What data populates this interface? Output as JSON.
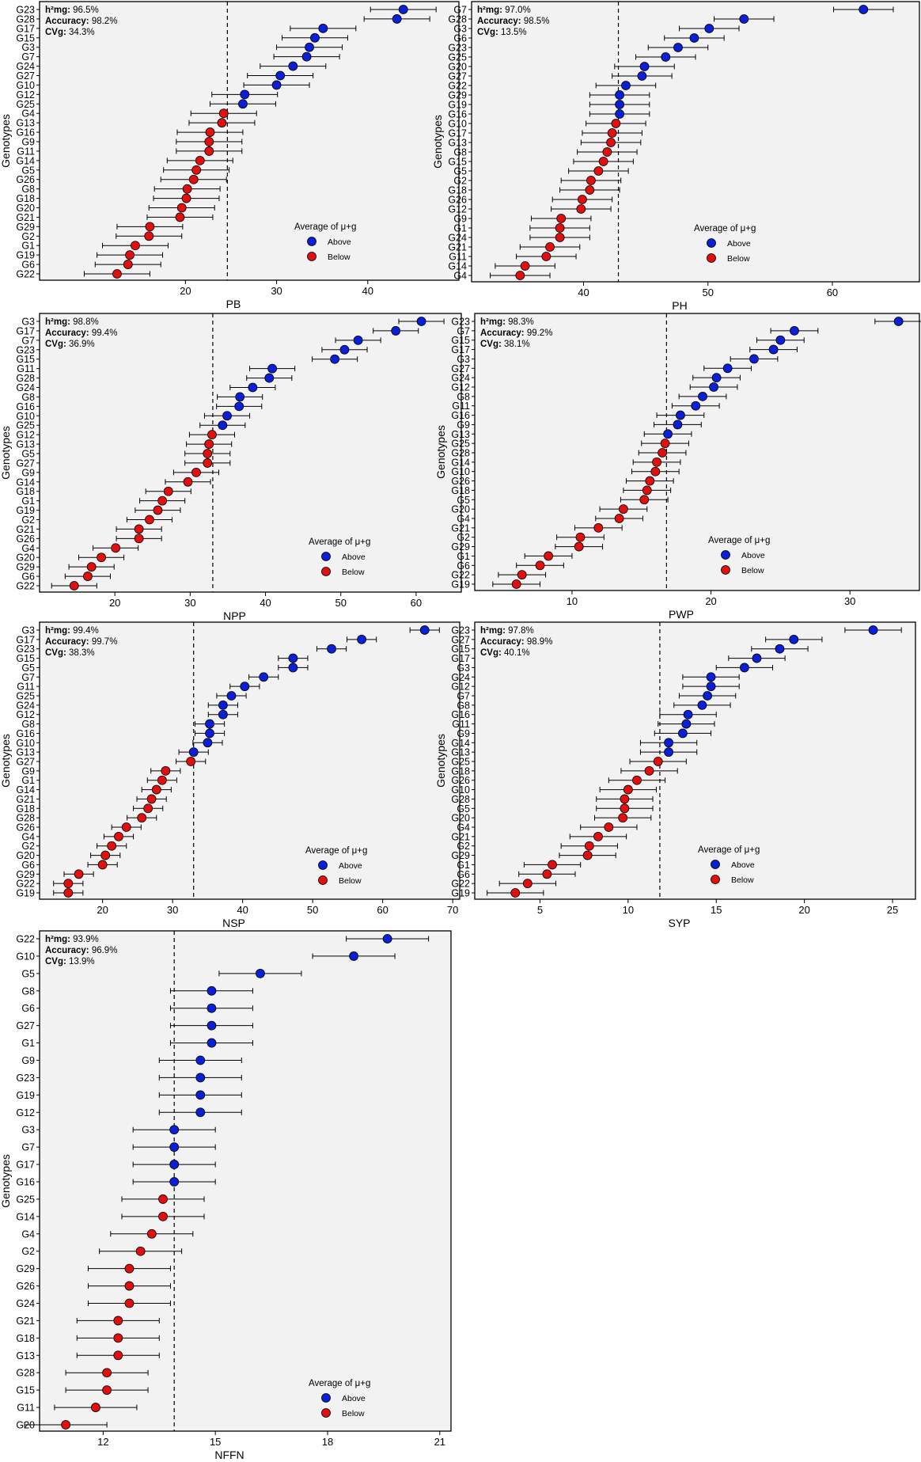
{
  "legend": {
    "title": "Average of μ+g",
    "above": "Above",
    "below": "Below"
  },
  "colors": {
    "above": "#0a1fd6",
    "below": "#e01010",
    "errorbar": "#000000"
  },
  "chart_data": [
    {
      "type": "scatter",
      "xlabel": "PB",
      "ylabel": "Genotypes",
      "xlim": [
        4,
        50
      ],
      "xticks": [
        20,
        30,
        40
      ],
      "mean": 24.6,
      "stats": {
        "h2_label": "h²mg:",
        "h2": "96.5%",
        "acc_label": "Accuracy:",
        "acc": "98.2%",
        "cvg_label": "CVg:",
        "cvg": "34.3%"
      },
      "genotypes": [
        "G23",
        "G28",
        "G17",
        "G15",
        "G3",
        "G7",
        "G24",
        "G27",
        "G10",
        "G12",
        "G25",
        "G4",
        "G13",
        "G16",
        "G9",
        "G11",
        "G14",
        "G5",
        "G26",
        "G8",
        "G18",
        "G20",
        "G21",
        "G29",
        "G2",
        "G1",
        "G19",
        "G6",
        "G22"
      ],
      "values": [
        43.9,
        43.2,
        35.1,
        34.2,
        33.6,
        33.3,
        31.8,
        30.4,
        30.0,
        26.5,
        26.3,
        24.2,
        24.0,
        22.7,
        22.6,
        22.6,
        21.6,
        21.2,
        20.9,
        20.2,
        20.1,
        19.6,
        19.4,
        16.1,
        16.0,
        14.5,
        13.9,
        13.7,
        12.5
      ],
      "errors": [
        3.6,
        3.6,
        3.6,
        3.6,
        3.6,
        3.6,
        3.6,
        3.6,
        3.6,
        3.6,
        3.6,
        3.6,
        3.6,
        3.6,
        3.6,
        3.6,
        3.6,
        3.6,
        3.6,
        3.6,
        3.6,
        3.6,
        3.6,
        3.6,
        3.6,
        3.6,
        3.6,
        3.6,
        3.6
      ]
    },
    {
      "type": "scatter",
      "xlabel": "PH",
      "ylabel": "Genotypes",
      "xlim": [
        31,
        67
      ],
      "xticks": [
        40,
        50,
        60
      ],
      "mean": 42.8,
      "stats": {
        "h2_label": "h²mg:",
        "h2": "97.0%",
        "acc_label": "Accuracy:",
        "acc": "98.5%",
        "cvg_label": "CVg:",
        "cvg": "13.5%"
      },
      "genotypes": [
        "G7",
        "G28",
        "G3",
        "G6",
        "G23",
        "G25",
        "G20",
        "G27",
        "G22",
        "G29",
        "G19",
        "G16",
        "G10",
        "G17",
        "G13",
        "G8",
        "G15",
        "G5",
        "G2",
        "G18",
        "G26",
        "G12",
        "G9",
        "G1",
        "G24",
        "G21",
        "G11",
        "G14",
        "G4"
      ],
      "values": [
        62.5,
        52.9,
        50.1,
        48.9,
        47.6,
        46.6,
        44.9,
        44.7,
        43.4,
        42.9,
        42.9,
        42.9,
        42.6,
        42.3,
        42.2,
        41.9,
        41.6,
        41.2,
        40.6,
        40.5,
        39.9,
        39.8,
        38.2,
        38.1,
        38.1,
        37.3,
        37.0,
        35.3,
        34.9
      ],
      "errors": [
        2.4,
        2.4,
        2.4,
        2.4,
        2.4,
        2.4,
        2.4,
        2.4,
        2.4,
        2.4,
        2.4,
        2.4,
        2.4,
        2.4,
        2.4,
        2.4,
        2.4,
        2.4,
        2.4,
        2.4,
        2.4,
        2.4,
        2.4,
        2.4,
        2.4,
        2.4,
        2.4,
        2.4,
        2.4
      ]
    },
    {
      "type": "scatter",
      "xlabel": "NPP",
      "ylabel": "Genotypes",
      "xlim": [
        10,
        66
      ],
      "xticks": [
        20,
        30,
        40,
        50,
        60
      ],
      "mean": 33.0,
      "stats": {
        "h2_label": "h²mg:",
        "h2": "98.8%",
        "acc_label": "Accuracy:",
        "acc": "99.4%",
        "cvg_label": "CVg:",
        "cvg": "36.9%"
      },
      "genotypes": [
        "G3",
        "G17",
        "G7",
        "G23",
        "G15",
        "G11",
        "G28",
        "G24",
        "G8",
        "G16",
        "G10",
        "G25",
        "G12",
        "G13",
        "G5",
        "G27",
        "G9",
        "G14",
        "G18",
        "G1",
        "G19",
        "G2",
        "G21",
        "G26",
        "G4",
        "G20",
        "G29",
        "G6",
        "G22"
      ],
      "values": [
        60.7,
        57.3,
        52.3,
        50.5,
        49.2,
        40.9,
        40.5,
        38.3,
        36.6,
        36.5,
        34.9,
        34.3,
        32.9,
        32.5,
        32.3,
        32.3,
        30.8,
        29.7,
        27.1,
        26.3,
        25.7,
        24.6,
        23.2,
        23.2,
        20.1,
        18.2,
        16.9,
        16.4,
        14.6
      ],
      "errors": [
        3.0,
        3.0,
        3.0,
        3.0,
        3.0,
        3.0,
        3.0,
        3.0,
        3.0,
        3.0,
        3.0,
        3.0,
        3.0,
        3.0,
        3.0,
        3.0,
        3.0,
        3.0,
        3.0,
        3.0,
        3.0,
        3.0,
        3.0,
        3.0,
        3.0,
        3.0,
        3.0,
        3.0,
        3.0
      ]
    },
    {
      "type": "scatter",
      "xlabel": "PWP",
      "ylabel": "Genotypes",
      "xlim": [
        3,
        35
      ],
      "xticks": [
        10,
        20,
        30
      ],
      "mean": 16.8,
      "stats": {
        "h2_label": "h²mg:",
        "h2": "98.3%",
        "acc_label": "Accuracy:",
        "acc": "99.2%",
        "cvg_label": "CVg:",
        "cvg": "38.1%"
      },
      "genotypes": [
        "G23",
        "G7",
        "G15",
        "G17",
        "G3",
        "G27",
        "G24",
        "G12",
        "G8",
        "G11",
        "G16",
        "G9",
        "G13",
        "G25",
        "G28",
        "G14",
        "G10",
        "G26",
        "G18",
        "G5",
        "G20",
        "G4",
        "G21",
        "G2",
        "G29",
        "G1",
        "G6",
        "G22",
        "G19"
      ],
      "values": [
        33.5,
        26.0,
        25.0,
        24.5,
        23.1,
        21.2,
        20.4,
        20.2,
        19.4,
        18.9,
        17.8,
        17.6,
        16.9,
        16.7,
        16.5,
        16.1,
        16.0,
        15.6,
        15.4,
        15.2,
        13.7,
        13.4,
        11.9,
        10.6,
        10.5,
        8.3,
        7.7,
        6.4,
        6.0
      ],
      "errors": [
        1.7,
        1.7,
        1.7,
        1.7,
        1.7,
        1.7,
        1.7,
        1.7,
        1.7,
        1.7,
        1.7,
        1.7,
        1.7,
        1.7,
        1.7,
        1.7,
        1.7,
        1.7,
        1.7,
        1.7,
        1.7,
        1.7,
        1.7,
        1.7,
        1.7,
        1.7,
        1.7,
        1.7,
        1.7
      ]
    },
    {
      "type": "scatter",
      "xlabel": "NSP",
      "ylabel": "Genotypes",
      "xlim": [
        11,
        71
      ],
      "xticks": [
        20,
        30,
        40,
        50,
        60,
        70
      ],
      "mean": 33.0,
      "stats": {
        "h2_label": "h²mg:",
        "h2": "99.4%",
        "acc_label": "Accuracy:",
        "acc": "99.7%",
        "cvg_label": "CVg:",
        "cvg": "38.3%"
      },
      "genotypes": [
        "G3",
        "G17",
        "G23",
        "G15",
        "G5",
        "G7",
        "G11",
        "G25",
        "G24",
        "G12",
        "G8",
        "G16",
        "G10",
        "G13",
        "G27",
        "G9",
        "G1",
        "G14",
        "G21",
        "G18",
        "G28",
        "G26",
        "G4",
        "G2",
        "G20",
        "G6",
        "G29",
        "G22",
        "G19"
      ],
      "values": [
        66.0,
        57.0,
        52.7,
        47.2,
        47.2,
        43.0,
        40.3,
        38.4,
        37.2,
        37.2,
        35.3,
        35.3,
        35.0,
        33.0,
        32.6,
        29.0,
        28.5,
        27.7,
        27.0,
        26.5,
        25.6,
        23.4,
        22.3,
        21.3,
        20.4,
        20.0,
        16.6,
        15.1,
        15.1
      ],
      "errors": [
        2.1,
        2.1,
        2.1,
        2.1,
        2.1,
        2.1,
        2.1,
        2.1,
        2.1,
        2.1,
        2.1,
        2.1,
        2.1,
        2.1,
        2.1,
        2.1,
        2.1,
        2.1,
        2.1,
        2.1,
        2.1,
        2.1,
        2.1,
        2.1,
        2.1,
        2.1,
        2.1,
        2.1,
        2.1
      ]
    },
    {
      "type": "scatter",
      "xlabel": "SYP",
      "ylabel": "Genotypes",
      "xlim": [
        1.3,
        26.3
      ],
      "xticks": [
        5,
        10,
        15,
        20,
        25
      ],
      "mean": 11.8,
      "stats": {
        "h2_label": "h²mg:",
        "h2": "97.8%",
        "acc_label": "Accuracy:",
        "acc": "98.9%",
        "cvg_label": "CVg:",
        "cvg": "40.1%"
      },
      "genotypes": [
        "G23",
        "G27",
        "G15",
        "G17",
        "G3",
        "G24",
        "G12",
        "G7",
        "G8",
        "G16",
        "G11",
        "G9",
        "G14",
        "G13",
        "G25",
        "G18",
        "G26",
        "G10",
        "G28",
        "G5",
        "G20",
        "G4",
        "G21",
        "G2",
        "G29",
        "G1",
        "G6",
        "G22",
        "G19"
      ],
      "values": [
        23.9,
        19.4,
        18.6,
        17.3,
        16.6,
        14.7,
        14.7,
        14.5,
        14.2,
        13.4,
        13.3,
        13.1,
        12.3,
        12.3,
        11.7,
        11.2,
        10.5,
        10.0,
        9.8,
        9.8,
        9.7,
        8.9,
        8.3,
        7.8,
        7.7,
        5.7,
        5.4,
        4.3,
        3.6
      ],
      "errors": [
        1.6,
        1.6,
        1.6,
        1.6,
        1.6,
        1.6,
        1.6,
        1.6,
        1.6,
        1.6,
        1.6,
        1.6,
        1.6,
        1.6,
        1.6,
        1.6,
        1.6,
        1.6,
        1.6,
        1.6,
        1.6,
        1.6,
        1.6,
        1.6,
        1.6,
        1.6,
        1.6,
        1.6,
        1.6
      ]
    },
    {
      "type": "scatter",
      "xlabel": "NFFN",
      "ylabel": "Genotypes",
      "xlim": [
        10.3,
        21.3
      ],
      "xticks": [
        12,
        15,
        18,
        21
      ],
      "mean": 13.9,
      "stats": {
        "h2_label": "h²mg:",
        "h2": "93.9%",
        "acc_label": "Accuracy:",
        "acc": "96.9%",
        "cvg_label": "CVg:",
        "cvg": "13.9%"
      },
      "genotypes": [
        "G22",
        "G10",
        "G5",
        "G8",
        "G6",
        "G27",
        "G1",
        "G9",
        "G23",
        "G19",
        "G12",
        "G3",
        "G7",
        "G17",
        "G16",
        "G25",
        "G14",
        "G4",
        "G2",
        "G29",
        "G26",
        "G24",
        "G21",
        "G18",
        "G13",
        "G28",
        "G15",
        "G11",
        "G20"
      ],
      "values": [
        19.6,
        18.7,
        16.2,
        14.9,
        14.9,
        14.9,
        14.9,
        14.6,
        14.6,
        14.6,
        14.6,
        13.9,
        13.9,
        13.9,
        13.9,
        13.6,
        13.6,
        13.3,
        13.0,
        12.7,
        12.7,
        12.7,
        12.4,
        12.4,
        12.4,
        12.1,
        12.1,
        11.8,
        11.0
      ],
      "errors": [
        1.1,
        1.1,
        1.1,
        1.1,
        1.1,
        1.1,
        1.1,
        1.1,
        1.1,
        1.1,
        1.1,
        1.1,
        1.1,
        1.1,
        1.1,
        1.1,
        1.1,
        1.1,
        1.1,
        1.1,
        1.1,
        1.1,
        1.1,
        1.1,
        1.1,
        1.1,
        1.1,
        1.1,
        1.1
      ]
    }
  ]
}
